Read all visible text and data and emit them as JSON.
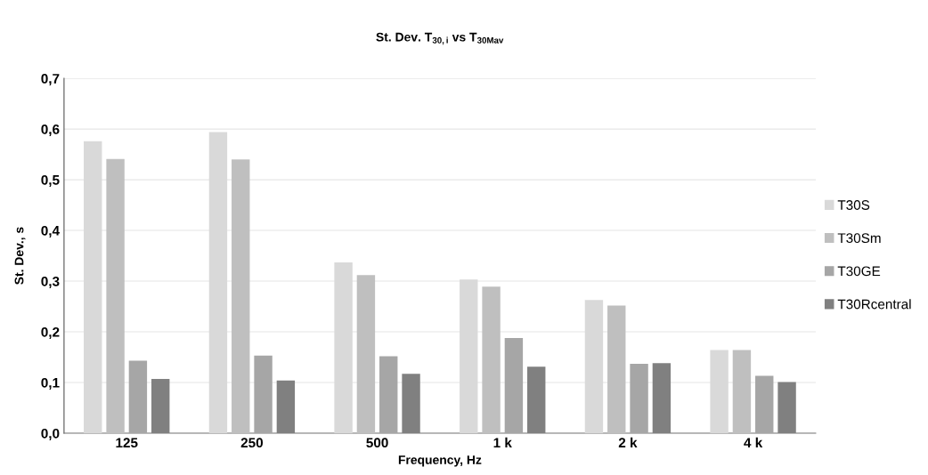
{
  "chart_data": {
    "type": "bar",
    "title": "St. Dev. T$_{30,i}$ vs T$_{30Mav}$",
    "xlabel": "Frequency, Hz",
    "ylabel": "St. Dev., s",
    "categories": [
      "125",
      "250",
      "500",
      "1 k",
      "2 k",
      "4 k"
    ],
    "series": [
      {
        "name": "T30S",
        "color": "#d9d9d9",
        "values": [
          0.576,
          0.594,
          0.337,
          0.303,
          0.263,
          0.164
        ]
      },
      {
        "name": "T30Sm",
        "color": "#bfbfbf",
        "values": [
          0.541,
          0.54,
          0.312,
          0.289,
          0.252,
          0.164
        ]
      },
      {
        "name": "T30GE",
        "color": "#a6a6a6",
        "values": [
          0.143,
          0.153,
          0.152,
          0.188,
          0.137,
          0.113
        ]
      },
      {
        "name": "T30Rcentral",
        "color": "#808080",
        "values": [
          0.107,
          0.104,
          0.117,
          0.131,
          0.138,
          0.101
        ]
      }
    ],
    "ylim": [
      0,
      0.7
    ],
    "yticks": [
      {
        "value": 0,
        "label": "0,0"
      },
      {
        "value": 0.1,
        "label": "0,1"
      },
      {
        "value": 0.2,
        "label": "0,2"
      },
      {
        "value": 0.3,
        "label": "0,3"
      },
      {
        "value": 0.4,
        "label": "0,4"
      },
      {
        "value": 0.5,
        "label": "0,5"
      },
      {
        "value": 0.6,
        "label": "0,6"
      },
      {
        "value": 0.7,
        "label": "0,7"
      }
    ],
    "grid": "y",
    "legend": "right"
  }
}
